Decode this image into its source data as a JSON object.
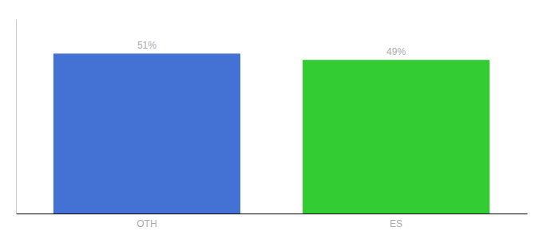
{
  "chart_data": {
    "type": "bar",
    "categories": [
      "OTH",
      "ES"
    ],
    "values": [
      51,
      49
    ],
    "value_labels": [
      "51%",
      "49%"
    ],
    "data_labels": true,
    "colors": [
      "#4472d4",
      "#33cc33"
    ],
    "ylim": [
      0,
      62
    ],
    "grid": false,
    "tick_labels": "x"
  }
}
